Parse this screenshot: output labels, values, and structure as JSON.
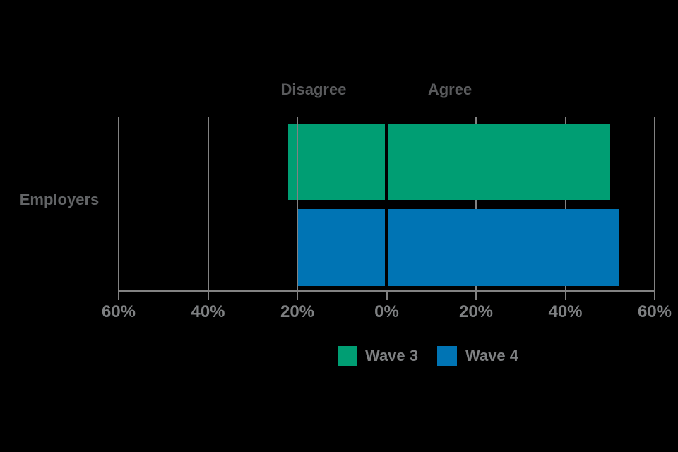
{
  "chart_data": {
    "type": "bar",
    "subtype": "horizontal-diverging",
    "title": "",
    "category": "Employers",
    "side_labels": {
      "left": "Disagree",
      "right": "Agree"
    },
    "series": [
      {
        "name": "Wave 3",
        "color": "#009E73",
        "disagree_pct": 22,
        "agree_pct": 50
      },
      {
        "name": "Wave 4",
        "color": "#0074B4",
        "disagree_pct": 20,
        "agree_pct": 52
      }
    ],
    "x_tick_labels": [
      "60%",
      "40%",
      "20%",
      "0%",
      "20%",
      "40%",
      "60%"
    ],
    "x_tick_values": [
      -60,
      -40,
      -20,
      0,
      20,
      40,
      60
    ],
    "xlim": [
      -60,
      60
    ],
    "grid": "vertical-gridlines-on",
    "legend_position": "bottom",
    "legend": [
      "Wave 3",
      "Wave 4"
    ]
  },
  "colors": {
    "background": "#000000",
    "grid_and_axis": "#828282",
    "tick_label_text": "#7E8082",
    "legend_text": "#7E8082",
    "side_label_text": "#595A5C",
    "category_label_text": "#626466"
  }
}
